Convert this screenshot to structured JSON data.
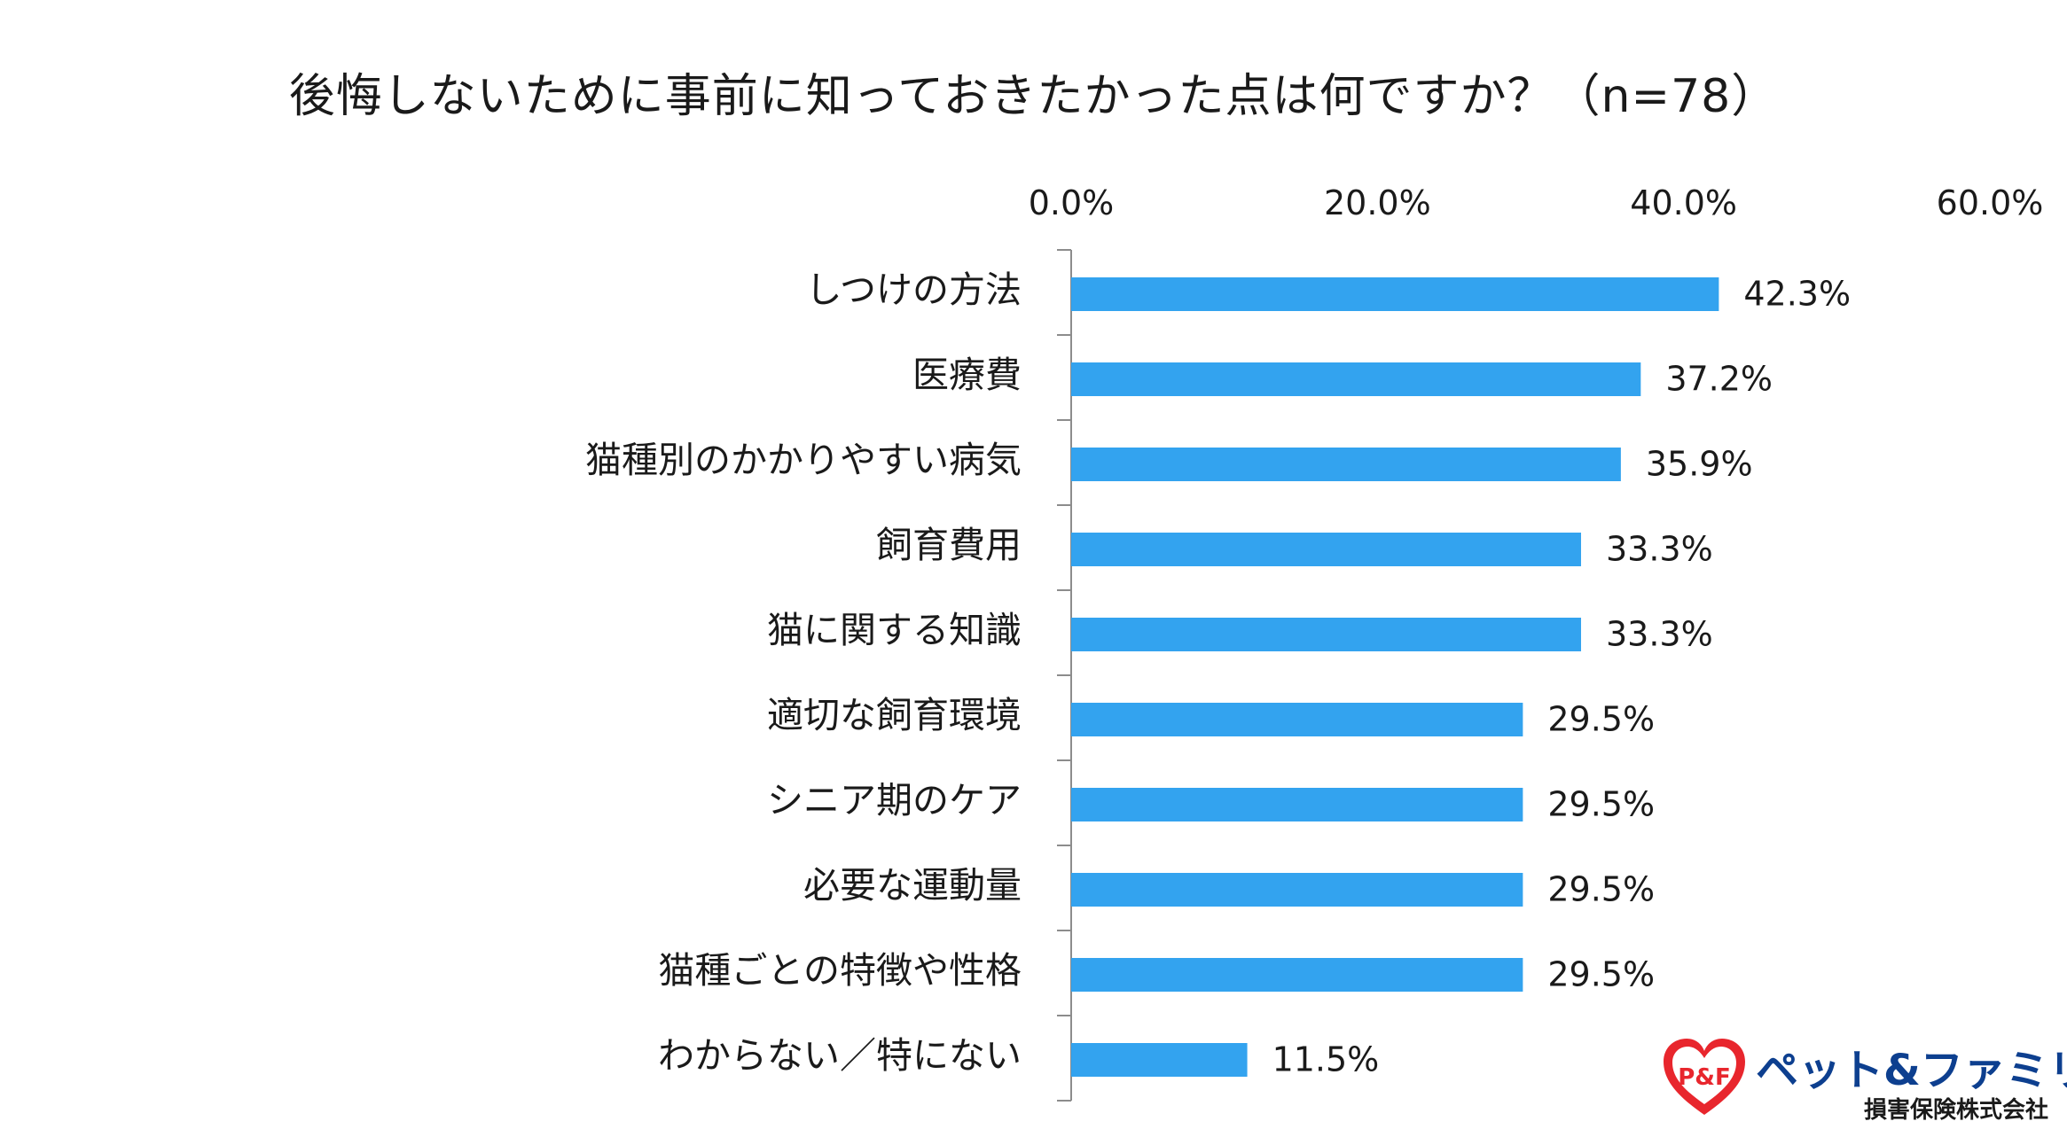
{
  "chart_data": {
    "type": "bar",
    "orientation": "horizontal",
    "title": "後悔しないために事前に知っておきたかった点は何ですか？（n=78）",
    "categories": [
      "しつけの方法",
      "医療費",
      "猫種別のかかりやすい病気",
      "飼育費用",
      "猫に関する知識",
      "適切な飼育環境",
      "シニア期のケア",
      "必要な運動量",
      "猫種ごとの特徴や性格",
      "わからない／特にない"
    ],
    "values": [
      42.3,
      37.2,
      35.9,
      33.3,
      33.3,
      29.5,
      29.5,
      29.5,
      29.5,
      11.5
    ],
    "value_labels": [
      "42.3%",
      "37.2%",
      "35.9%",
      "33.3%",
      "33.3%",
      "29.5%",
      "29.5%",
      "29.5%",
      "29.5%",
      "11.5%"
    ],
    "xlim": [
      0,
      60
    ],
    "x_ticks": [
      0,
      20,
      40,
      60
    ],
    "x_tick_labels": [
      "0.0%",
      "20.0%",
      "40.0%",
      "60.0%"
    ],
    "x_axis_position": "top",
    "bar_color": "#33a3ef",
    "grid": false,
    "legend": "none"
  },
  "logo": {
    "name": "ペット&ファミリー",
    "company": "損害保険株式会社",
    "mark_text": "P&F",
    "colors": {
      "heart": "#e8262d",
      "name": "#0d3f8f"
    }
  }
}
